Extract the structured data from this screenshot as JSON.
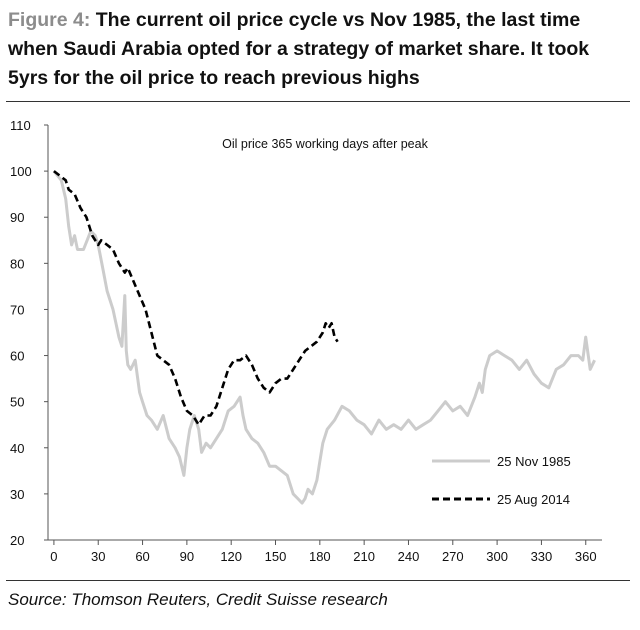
{
  "figure": {
    "label": "Figure 4:",
    "title": "The current oil price cycle vs Nov 1985, the last time when Saudi Arabia opted for a strategy of market share. It took 5yrs for the oil price to reach previous highs",
    "source": "Source: Thomson Reuters, Credit Suisse research"
  },
  "chart_data": {
    "type": "line",
    "title": "Oil price 365 working days after peak",
    "xlabel": "",
    "ylabel": "",
    "xlim": [
      0,
      365
    ],
    "ylim": [
      20,
      110
    ],
    "x_ticks": [
      0,
      30,
      60,
      90,
      120,
      150,
      180,
      210,
      240,
      270,
      300,
      330,
      360
    ],
    "y_ticks": [
      20,
      30,
      40,
      50,
      60,
      70,
      80,
      90,
      100,
      110
    ],
    "legend_position": "bottom-right",
    "series": [
      {
        "name": "25 Nov 1985",
        "style": "solid",
        "color": "#cccccc",
        "x": [
          0,
          5,
          8,
          10,
          12,
          14,
          16,
          20,
          25,
          28,
          30,
          33,
          36,
          40,
          44,
          46,
          48,
          49,
          50,
          52,
          55,
          58,
          60,
          63,
          66,
          70,
          74,
          78,
          82,
          85,
          88,
          90,
          92,
          95,
          98,
          100,
          103,
          106,
          110,
          114,
          118,
          122,
          126,
          128,
          130,
          134,
          138,
          142,
          146,
          150,
          154,
          158,
          162,
          165,
          168,
          170,
          172,
          175,
          178,
          180,
          182,
          185,
          190,
          195,
          200,
          205,
          210,
          215,
          220,
          225,
          230,
          235,
          240,
          245,
          250,
          255,
          260,
          265,
          270,
          275,
          280,
          285,
          288,
          290,
          292,
          295,
          300,
          305,
          310,
          315,
          320,
          325,
          330,
          335,
          340,
          345,
          350,
          355,
          358,
          360,
          363,
          366
        ],
        "values": [
          100,
          98,
          94,
          88,
          84,
          86,
          83,
          83,
          87,
          86,
          84,
          79,
          74,
          70,
          64,
          62,
          73,
          61,
          58,
          57,
          59,
          52,
          50,
          47,
          46,
          44,
          47,
          42,
          40,
          38,
          34,
          40,
          44,
          47,
          44,
          39,
          41,
          40,
          42,
          44,
          48,
          49,
          51,
          47,
          44,
          42,
          41,
          39,
          36,
          36,
          35,
          34,
          30,
          29,
          28,
          29,
          31,
          30,
          33,
          37,
          41,
          44,
          46,
          49,
          48,
          46,
          45,
          43,
          46,
          44,
          45,
          44,
          46,
          44,
          45,
          46,
          48,
          50,
          48,
          49,
          47,
          51,
          54,
          52,
          57,
          60,
          61,
          60,
          59,
          57,
          59,
          56,
          54,
          53,
          57,
          58,
          60,
          60,
          59,
          64,
          57,
          59
        ]
      },
      {
        "name": "25 Aug 2014",
        "style": "dashed",
        "color": "#000000",
        "x": [
          0,
          4,
          8,
          10,
          14,
          18,
          22,
          26,
          30,
          32,
          36,
          40,
          44,
          48,
          50,
          54,
          58,
          62,
          66,
          70,
          74,
          78,
          82,
          86,
          90,
          94,
          98,
          100,
          102,
          106,
          110,
          114,
          118,
          122,
          126,
          130,
          134,
          138,
          142,
          146,
          150,
          154,
          158,
          162,
          166,
          170,
          174,
          178,
          182,
          184,
          186,
          188,
          190,
          192
        ],
        "values": [
          100,
          99,
          98,
          96,
          95,
          92,
          90,
          86,
          84,
          85,
          84,
          83,
          80,
          78,
          79,
          76,
          73,
          70,
          65,
          60,
          59,
          58,
          55,
          51,
          48,
          47,
          45,
          46,
          47,
          47,
          49,
          53,
          57,
          59,
          59,
          60,
          58,
          55,
          53,
          52,
          54,
          55,
          55,
          57,
          59,
          61,
          62,
          63,
          65,
          67,
          66,
          67,
          64,
          63
        ]
      }
    ]
  }
}
